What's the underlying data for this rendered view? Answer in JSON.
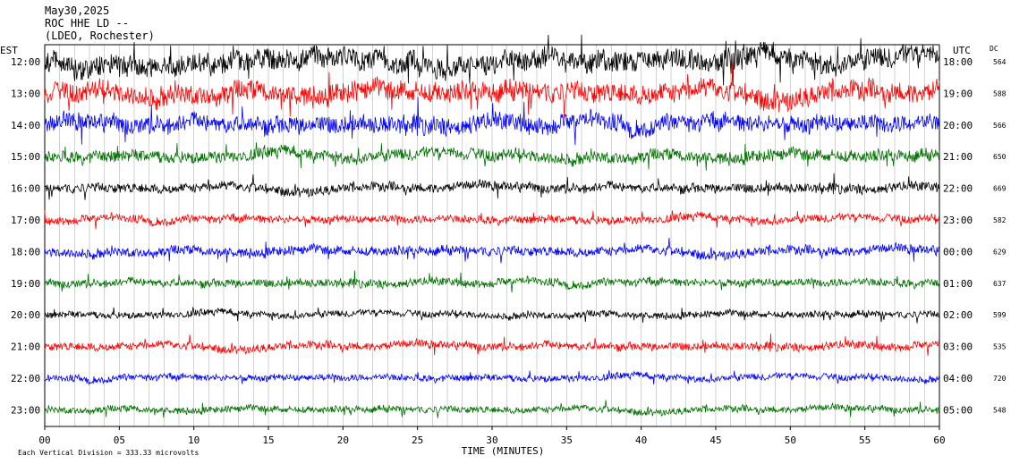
{
  "header": {
    "date": "May30,2025",
    "station": "ROC HHE LD --",
    "network": "(LDEO, Rochester)"
  },
  "axis_labels": {
    "left_zone": "EST",
    "right_zone": "UTC",
    "dc_header": "DC",
    "x_title": "TIME (MINUTES)"
  },
  "footer": {
    "vertical_division": "Each Vertical Division =  333.33 microvolts"
  },
  "chart_data": {
    "type": "line",
    "title": "May30,2025 ROC HHE LD -- (LDEO, Rochester)",
    "xlabel": "TIME (MINUTES)",
    "xlim": [
      0,
      60
    ],
    "x_ticks": [
      "00",
      "05",
      "10",
      "15",
      "20",
      "25",
      "30",
      "35",
      "40",
      "45",
      "50",
      "55",
      "60"
    ],
    "grid": "vertical lines every minute",
    "colors": [
      "#000000",
      "#ff0000",
      "#0000ff",
      "#007000"
    ],
    "rows": [
      {
        "est": "12:00",
        "utc": "18:00",
        "dc": "564",
        "color": "#000000",
        "amplitude": 1.6
      },
      {
        "est": "13:00",
        "utc": "19:00",
        "dc": "588",
        "color": "#ff0000",
        "amplitude": 1.5
      },
      {
        "est": "14:00",
        "utc": "20:00",
        "dc": "566",
        "color": "#0000ff",
        "amplitude": 1.3
      },
      {
        "est": "15:00",
        "utc": "21:00",
        "dc": "650",
        "color": "#007000",
        "amplitude": 0.9
      },
      {
        "est": "16:00",
        "utc": "22:00",
        "dc": "669",
        "color": "#000000",
        "amplitude": 0.7
      },
      {
        "est": "17:00",
        "utc": "23:00",
        "dc": "582",
        "color": "#ff0000",
        "amplitude": 0.6
      },
      {
        "est": "18:00",
        "utc": "00:00",
        "dc": "629",
        "color": "#0000ff",
        "amplitude": 0.7
      },
      {
        "est": "19:00",
        "utc": "01:00",
        "dc": "637",
        "color": "#007000",
        "amplitude": 0.6
      },
      {
        "est": "20:00",
        "utc": "02:00",
        "dc": "599",
        "color": "#000000",
        "amplitude": 0.5
      },
      {
        "est": "21:00",
        "utc": "03:00",
        "dc": "535",
        "color": "#ff0000",
        "amplitude": 0.6
      },
      {
        "est": "22:00",
        "utc": "04:00",
        "dc": "720",
        "color": "#0000ff",
        "amplitude": 0.5
      },
      {
        "est": "23:00",
        "utc": "05:00",
        "dc": "548",
        "color": "#007000",
        "amplitude": 0.5
      }
    ]
  }
}
